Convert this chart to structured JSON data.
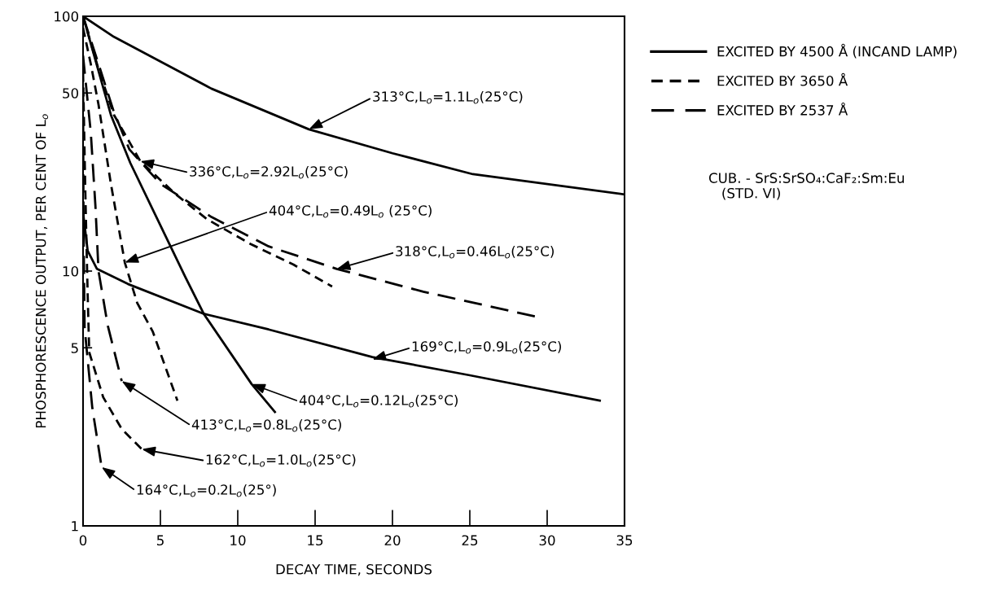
{
  "chart_data": {
    "type": "line",
    "xlabel": "DECAY TIME, SECONDS",
    "ylabel": "PHOSPHORESCENCE OUTPUT, PER CENT OF L$_{o}$",
    "log": "y",
    "xlim": [
      0,
      35
    ],
    "xticks": [
      0,
      5,
      10,
      15,
      20,
      25,
      30,
      35
    ],
    "ylim": [
      1,
      100
    ],
    "yticks": [
      1,
      5,
      10,
      50,
      100
    ],
    "grid": false,
    "legend": "right",
    "marker": "none",
    "series": [
      {
        "name": "EXCITED BY 4500 Å (INCAND LAMP)",
        "color": "#000000",
        "line_style": "solid",
        "x": [
          0,
          2,
          4.5,
          8.3,
          14.6,
          20,
          25.2,
          35
        ],
        "values": [
          100,
          83,
          69,
          52,
          36,
          29,
          24,
          20
        ]
      },
      {
        "color": "#000000",
        "line_style": "solid",
        "x": [
          0,
          0.3,
          0.9,
          2.9,
          7.8,
          12,
          18.7,
          25,
          33.4
        ],
        "values": [
          17,
          12,
          10.2,
          8.9,
          6.8,
          5.9,
          4.6,
          3.9,
          3.1
        ]
      },
      {
        "color": "#000000",
        "line_style": "solid",
        "x": [
          0,
          1.8,
          3.05,
          6.6,
          7.8,
          10.9,
          12.4
        ],
        "values": [
          100,
          41,
          26.6,
          9.5,
          6.8,
          3.6,
          2.8
        ]
      },
      {
        "name": "EXCITED BY 3650 Å",
        "color": "#000000",
        "line_style": "dashed",
        "x": [
          0,
          1,
          2,
          3.7,
          6,
          8,
          10.8,
          13.6,
          16.1
        ],
        "values": [
          100,
          62,
          41,
          27,
          20,
          16,
          12.8,
          10.6,
          8.7
        ]
      },
      {
        "color": "#000000",
        "line_style": "dashed",
        "x": [
          0,
          0.5,
          1,
          1.8,
          2.7,
          3.5,
          4.5,
          6.1
        ],
        "values": [
          90,
          65,
          45,
          22,
          10.8,
          7.5,
          5.8,
          3.1
        ]
      },
      {
        "color": "#000000",
        "line_style": "dashed",
        "x": [
          0,
          0.15,
          0.3,
          0.4,
          1.3,
          2.5,
          3.8
        ],
        "values": [
          60,
          20,
          8,
          4.8,
          3.2,
          2.4,
          2.0
        ]
      },
      {
        "name": "EXCITED BY 2537 Å",
        "color": "#000000",
        "line_style": "long_dashed",
        "x": [
          0,
          1,
          2,
          3,
          5,
          8.3,
          12,
          16.4,
          22,
          29.4
        ],
        "values": [
          100,
          65,
          42,
          30,
          22,
          16.3,
          12.5,
          10.2,
          8.3,
          6.6
        ]
      },
      {
        "color": "#000000",
        "line_style": "long_dashed",
        "x": [
          0,
          0.5,
          0.8,
          1.0,
          1.6,
          2.5
        ],
        "values": [
          70,
          35,
          18,
          10,
          6.1,
          3.7
        ]
      },
      {
        "color": "#000000",
        "line_style": "long_dashed",
        "x": [
          0,
          0.03,
          0.1,
          0.6,
          1.2
        ],
        "values": [
          50,
          15,
          6,
          2.9,
          1.7
        ]
      }
    ],
    "annotations": [
      {
        "text": "313°C,L$_{o}$=1.1L$_{o}$(25°C)",
        "x": 14.6,
        "y": 36
      },
      {
        "text": "336°C,L$_{o}$=2.92L$_{o}$(25°C)",
        "x": 3.7,
        "y": 27
      },
      {
        "text": "404°C,L$_{o}$=0.49L$_{o}$ (25°C)",
        "x": 2.7,
        "y": 10.8
      },
      {
        "text": "318°C,L$_{o}$=0.46L$_{o}$(25°C)",
        "x": 16.4,
        "y": 10.2
      },
      {
        "text": "169°C,L$_{o}$=0.9L$_{o}$(25°C)",
        "x": 18.7,
        "y": 4.5
      },
      {
        "text": "404°C,L$_{o}$=0.12L$_{o}$(25°C)",
        "x": 10.9,
        "y": 3.6
      },
      {
        "text": "413°C,L$_{o}$=0.8L$_{o}$(25°C)",
        "x": 2.5,
        "y": 3.7
      },
      {
        "text": "162°C,L$_{o}$=1.0L$_{o}$(25°C)",
        "x": 3.8,
        "y": 2.0
      },
      {
        "text": "164°C,L$_{o}$=0.2L$_{o}$(25°)",
        "x": 1.2,
        "y": 1.7
      },
      "CUB. - SrS:SrSO₄:CaF₂:Sm:Eu\n   (STD. VI)"
    ]
  }
}
